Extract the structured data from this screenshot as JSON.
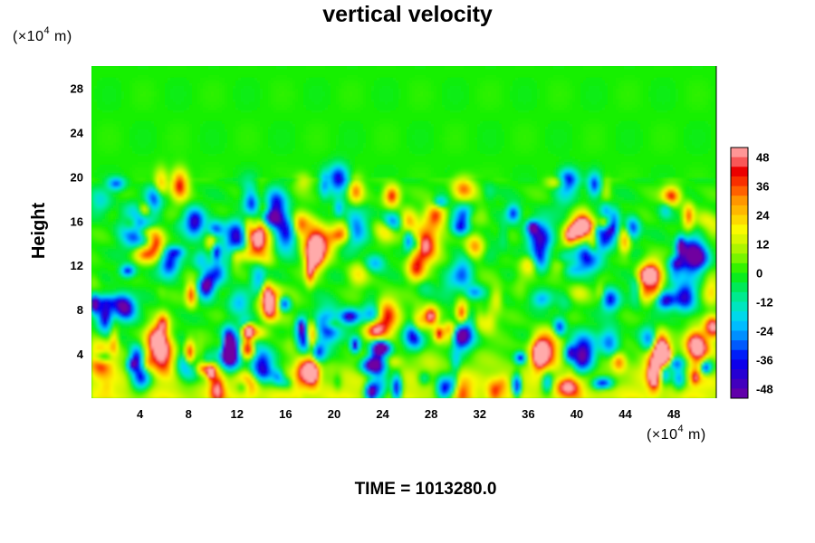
{
  "chart_data": {
    "type": "heatmap",
    "title": "vertical velocity",
    "ylabel": "Height",
    "x_unit": {
      "prefix": "(×10",
      "exp": "4",
      "suffix": " m)"
    },
    "y_unit": {
      "prefix": "(×10",
      "exp": "4",
      "suffix": " m)"
    },
    "xlim": [
      0,
      51.5
    ],
    "ylim": [
      0,
      30
    ],
    "x_ticks": [
      4,
      8,
      12,
      16,
      20,
      24,
      28,
      32,
      36,
      40,
      44,
      48
    ],
    "y_ticks": [
      4,
      8,
      12,
      16,
      20,
      24,
      28
    ],
    "colorbar": {
      "ticks": [
        48,
        36,
        24,
        12,
        0,
        -12,
        -24,
        -36,
        -48
      ],
      "range": [
        -52,
        52
      ]
    },
    "features": [
      {
        "x": 3.5,
        "y": 15.5,
        "w": -52
      },
      {
        "x": 13.8,
        "y": 14.5,
        "w": 55
      },
      {
        "x": 18.5,
        "y": 14.0,
        "w": 50
      },
      {
        "x": 27.5,
        "y": 14.0,
        "w": 52
      },
      {
        "x": 5.8,
        "y": 4.0,
        "w": 50
      },
      {
        "x": 24.2,
        "y": 7.5,
        "w": 48
      },
      {
        "x": 37.5,
        "y": 4.5,
        "w": 42
      },
      {
        "x": 12.0,
        "y": 14.5,
        "w": -48
      },
      {
        "x": 16.0,
        "y": 15.0,
        "w": -40
      },
      {
        "x": 21.5,
        "y": 15.5,
        "w": -44
      },
      {
        "x": 37.0,
        "y": 14.5,
        "w": -40
      },
      {
        "x": 41.0,
        "y": 13.0,
        "w": -42
      },
      {
        "x": 49.5,
        "y": 13.0,
        "w": -55
      },
      {
        "x": 11.5,
        "y": 4.0,
        "w": -50
      },
      {
        "x": 14.0,
        "y": 3.0,
        "w": -48
      },
      {
        "x": 8.0,
        "y": 3.0,
        "w": -40
      },
      {
        "x": 30.5,
        "y": 6.0,
        "w": -50
      },
      {
        "x": 40.5,
        "y": 4.0,
        "w": -55
      },
      {
        "x": 19.5,
        "y": 6.5,
        "w": -42
      },
      {
        "x": 0.8,
        "y": 3.5,
        "w": 38
      },
      {
        "x": 46.5,
        "y": 4.0,
        "w": 40
      },
      {
        "x": 50.5,
        "y": 3.5,
        "w": 42
      }
    ]
  },
  "footer": {
    "time_label": "TIME = 1013280.0"
  }
}
